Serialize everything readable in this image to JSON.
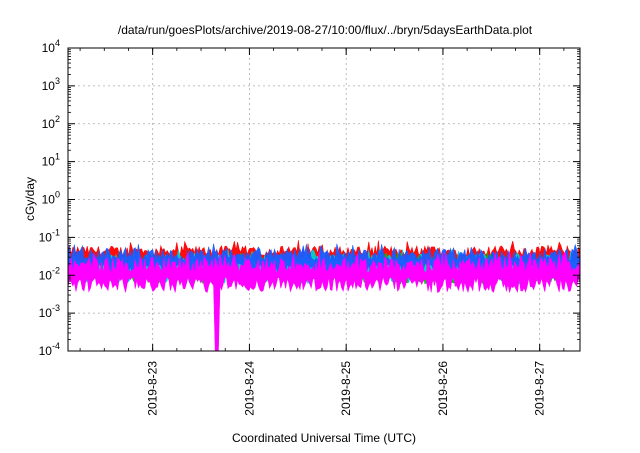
{
  "chart_data": {
    "type": "area",
    "title": "/data/run/goesPlots/archive/2019-08-27/10:00/flux/../bryn/5daysEarthData.plot",
    "xlabel": "Coordinated Universal Time (UTC)",
    "ylabel": "cGy/day",
    "y_scale": "log",
    "ylim": [
      0.0001,
      10000
    ],
    "y_ticks": [
      {
        "base": "10",
        "exp": "-4",
        "value": 0.0001
      },
      {
        "base": "10",
        "exp": "-3",
        "value": 0.001
      },
      {
        "base": "10",
        "exp": "-2",
        "value": 0.01
      },
      {
        "base": "10",
        "exp": "-1",
        "value": 0.1
      },
      {
        "base": "10",
        "exp": "0",
        "value": 1
      },
      {
        "base": "10",
        "exp": "1",
        "value": 10
      },
      {
        "base": "10",
        "exp": "2",
        "value": 100
      },
      {
        "base": "10",
        "exp": "3",
        "value": 1000
      },
      {
        "base": "10",
        "exp": "4",
        "value": 10000
      }
    ],
    "xlim": [
      "2019-08-22 03:00",
      "2019-08-27 10:00"
    ],
    "x_ticks": [
      "2019-8-23",
      "2019-8-24",
      "2019-8-25",
      "2019-8-26",
      "2019-8-27"
    ],
    "grid": true,
    "series_colors": [
      "#ff0000",
      "#00c000",
      "#00d0d0",
      "#1a5cff",
      "#ff00ff"
    ],
    "series_levels": [
      {
        "color": "#ff0000",
        "low": 0.015,
        "high": 0.06
      },
      {
        "color": "#00c000",
        "low": 0.006,
        "high": 0.03
      },
      {
        "color": "#00d0d0",
        "low": 0.006,
        "high": 0.035
      },
      {
        "color": "#1a5cff",
        "low": 0.01,
        "high": 0.05
      },
      {
        "color": "#ff00ff",
        "low": 0.0035,
        "high": 0.03
      }
    ],
    "annotations": [
      {
        "series": "#ff00ff",
        "x": "2019-08-23 16:00",
        "y": 0.0001,
        "note": "drop to axis minimum"
      }
    ]
  }
}
